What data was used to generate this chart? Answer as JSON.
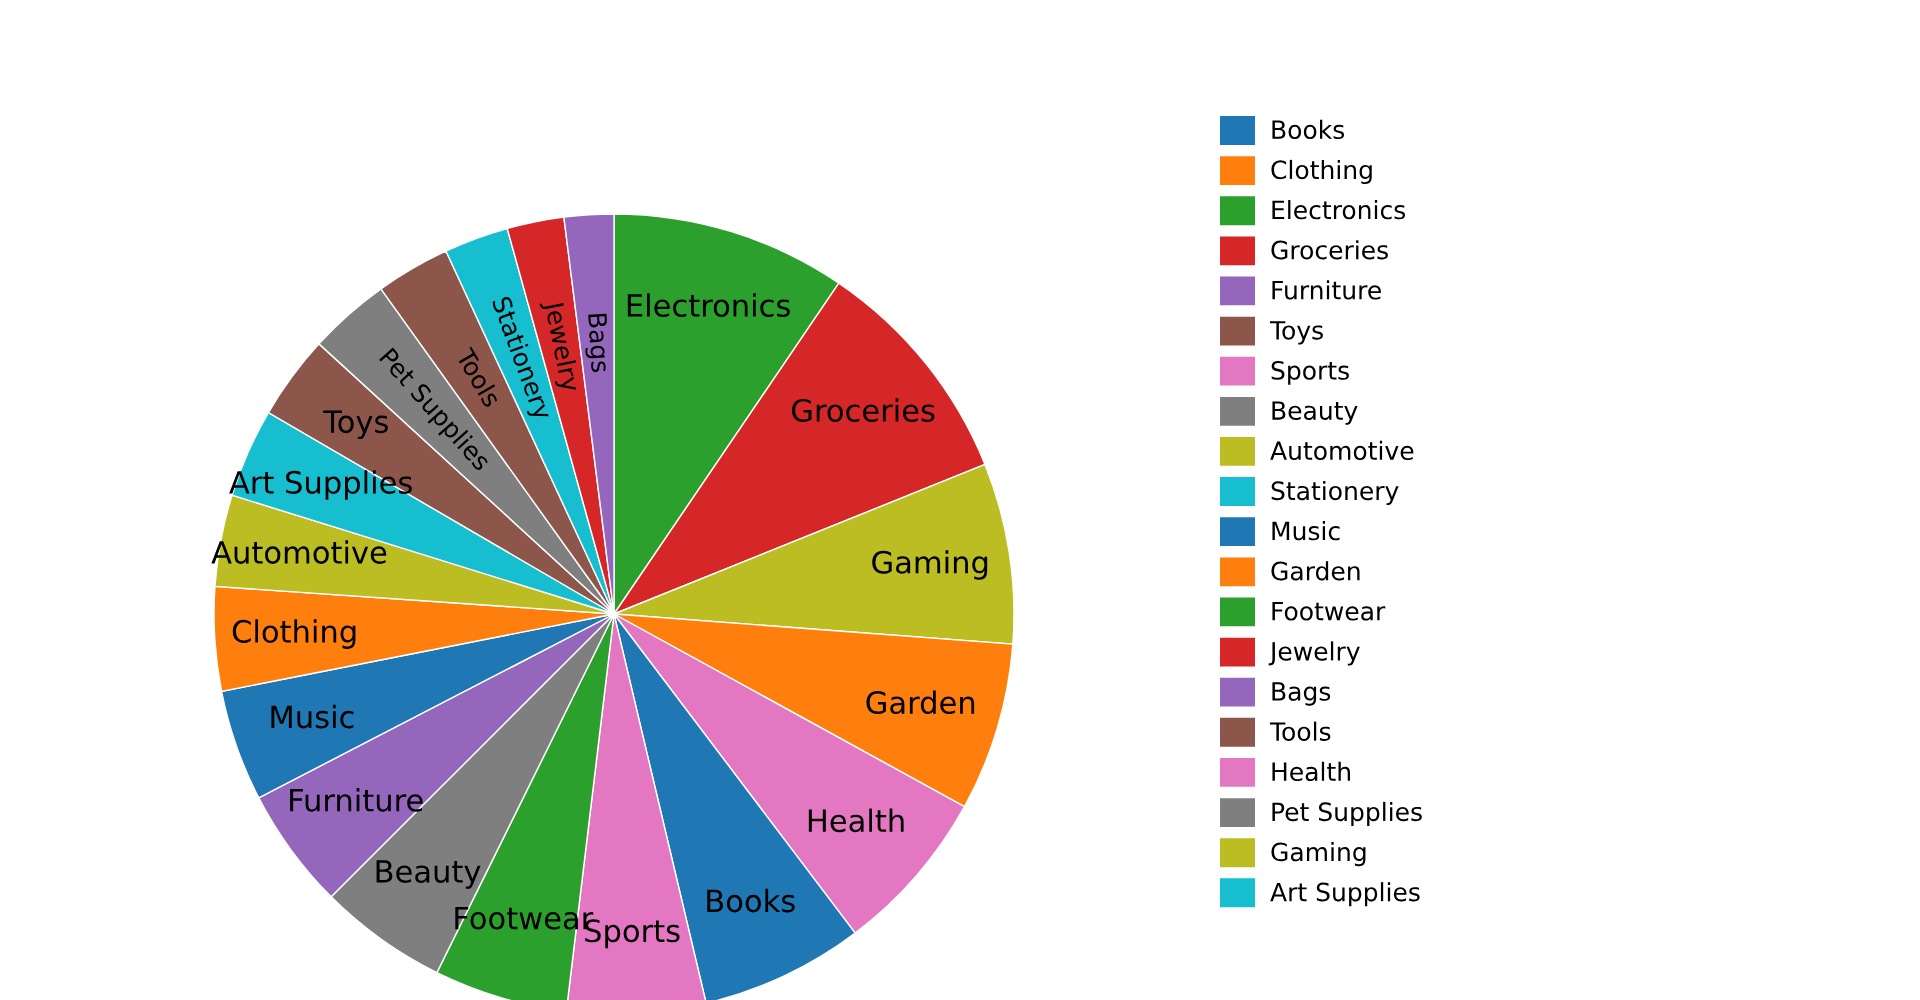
{
  "chart_data": {
    "type": "pie",
    "categories": [
      "Books",
      "Clothing",
      "Electronics",
      "Groceries",
      "Furniture",
      "Toys",
      "Sports",
      "Beauty",
      "Automotive",
      "Stationery",
      "Music",
      "Garden",
      "Footwear",
      "Jewelry",
      "Bags",
      "Tools",
      "Health",
      "Pet Supplies",
      "Gaming",
      "Art Supplies"
    ],
    "values": [
      6.6,
      4.2,
      9.5,
      9.4,
      4.9,
      3.4,
      5.6,
      5.2,
      3.7,
      2.6,
      4.5,
      6.8,
      5.4,
      2.3,
      2.0,
      3.0,
      6.7,
      3.3,
      7.3,
      3.6
    ],
    "colors": [
      "#1f77b4",
      "#ff7f0e",
      "#2ca02c",
      "#d62728",
      "#9467bd",
      "#8c564b",
      "#e377c2",
      "#7f7f7f",
      "#bcbd22",
      "#17becf",
      "#1f77b4",
      "#ff7f0e",
      "#2ca02c",
      "#d62728",
      "#9467bd",
      "#8c564b",
      "#e377c2",
      "#7f7f7f",
      "#bcbd22",
      "#17becf"
    ],
    "legend": "right"
  }
}
